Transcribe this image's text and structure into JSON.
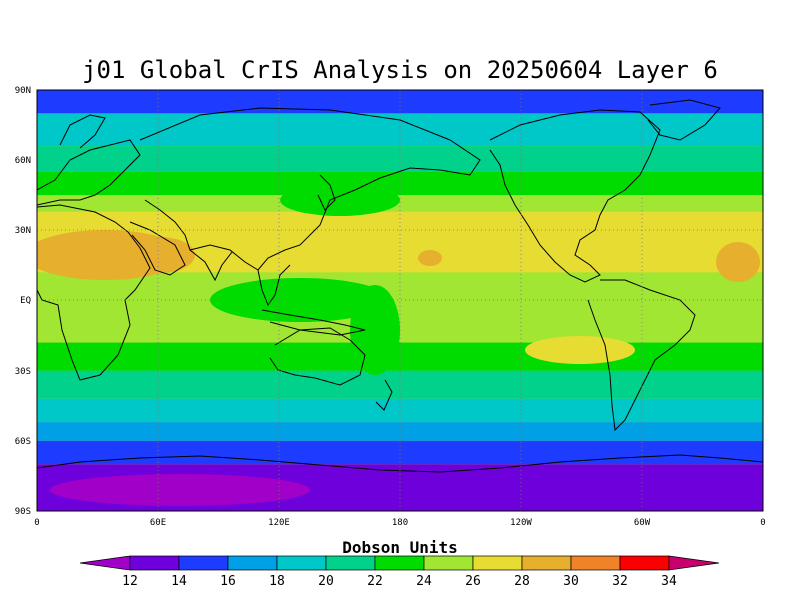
{
  "title": "j01 Global CrIS Analysis on 20250604 Layer 6",
  "map": {
    "lat_labels": [
      "90N",
      "60N",
      "30N",
      "EQ",
      "30S",
      "60S",
      "90S"
    ],
    "lon_labels": [
      "0",
      "60E",
      "120E",
      "180",
      "120W",
      "60W",
      "0"
    ],
    "lat_range": [
      -90,
      90
    ],
    "lon_range": [
      0,
      360
    ],
    "grid": "dotted",
    "field_bands": [
      {
        "from": 90,
        "to": 80,
        "value": 15
      },
      {
        "from": 80,
        "to": 66,
        "value": 19
      },
      {
        "from": 66,
        "to": 55,
        "value": 21
      },
      {
        "from": 55,
        "to": 45,
        "value": 23
      },
      {
        "from": 45,
        "to": 38,
        "value": 25
      },
      {
        "from": 38,
        "to": 12,
        "value": 27
      },
      {
        "from": 12,
        "to": -18,
        "value": 25
      },
      {
        "from": -18,
        "to": -30,
        "value": 23
      },
      {
        "from": -30,
        "to": -42,
        "value": 21
      },
      {
        "from": -42,
        "to": -52,
        "value": 19
      },
      {
        "from": -52,
        "to": -60,
        "value": 17
      },
      {
        "from": -60,
        "to": -70,
        "value": 15
      },
      {
        "from": -70,
        "to": -90,
        "value": 13
      }
    ]
  },
  "colorbar": {
    "title": "Dobson Units",
    "ticks": [
      "12",
      "14",
      "16",
      "18",
      "20",
      "22",
      "24",
      "26",
      "28",
      "30",
      "32",
      "34"
    ],
    "colors": [
      "#a000c8",
      "#6e00dc",
      "#1e3cff",
      "#00a0e6",
      "#00c8c8",
      "#00d28c",
      "#00dc00",
      "#a0e632",
      "#e6dc32",
      "#e6af2d",
      "#f08228",
      "#fa0000",
      "#c8006e"
    ]
  }
}
